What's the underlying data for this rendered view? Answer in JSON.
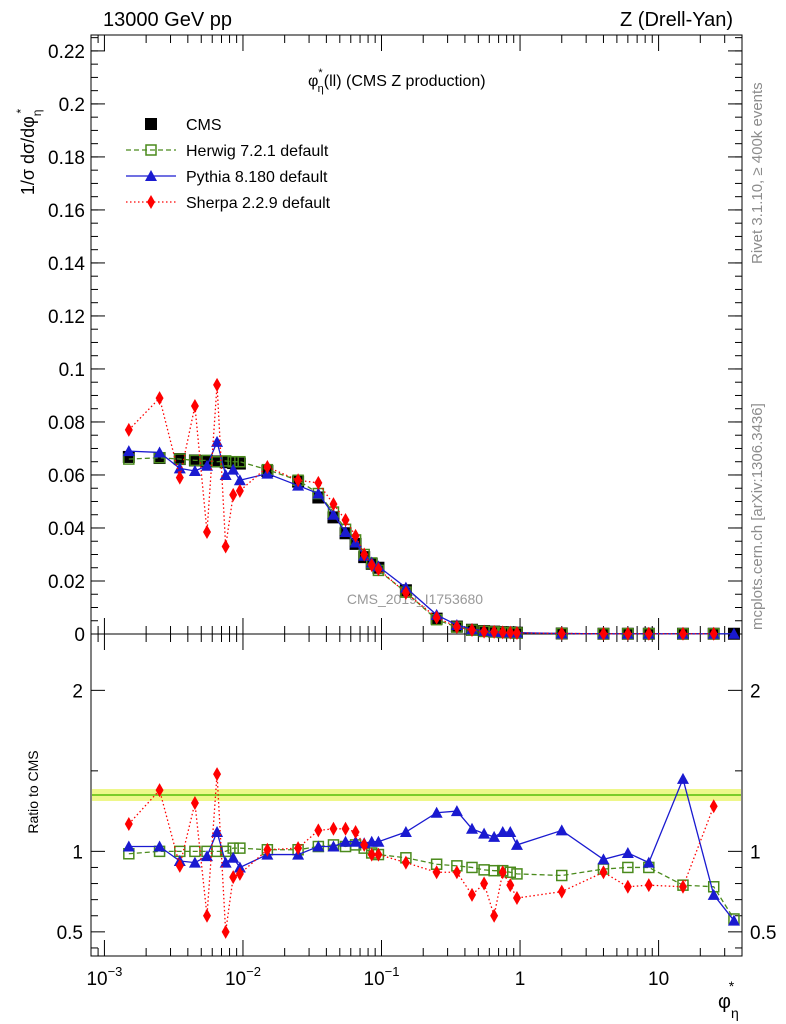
{
  "header": {
    "left": "13000 GeV pp",
    "right": "Z (Drell-Yan)"
  },
  "side_text": {
    "rivet": "Rivet 3.1.10, ≥ 400k events",
    "site": "mcplots.cern.ch [arXiv:1306.3436]"
  },
  "watermark": "CMS_2019_I1753680",
  "chart_data": [
    {
      "type": "scatter",
      "panel": "main",
      "title": "φ*η(ll) (CMS Z production)",
      "title_parts": {
        "phi": "φ",
        "star": "*",
        "eta": "η",
        "rest": "(ll) (CMS Z production)"
      },
      "ylabel": "1/σ dσ/dφ*η",
      "ylabel_parts": {
        "main": "1/σ dσ/dφ",
        "star": "*",
        "eta": "η"
      },
      "x_scale": "log",
      "xlim": [
        0.0008,
        40
      ],
      "ylim": [
        0,
        0.226
      ],
      "yticks": [
        {
          "v": 0,
          "label": "0"
        },
        {
          "v": 0.02,
          "label": "0.02"
        },
        {
          "v": 0.04,
          "label": "0.04"
        },
        {
          "v": 0.06,
          "label": "0.06"
        },
        {
          "v": 0.08,
          "label": "0.08"
        },
        {
          "v": 0.1,
          "label": "0.1"
        },
        {
          "v": 0.12,
          "label": "0.12"
        },
        {
          "v": 0.14,
          "label": "0.14"
        },
        {
          "v": 0.16,
          "label": "0.16"
        },
        {
          "v": 0.18,
          "label": "0.18"
        },
        {
          "v": 0.2,
          "label": "0.2"
        },
        {
          "v": 0.22,
          "label": "0.22"
        }
      ],
      "legend_position": "top-left",
      "series": [
        {
          "name": "CMS",
          "color": "#000000",
          "marker": "square-filled",
          "line": "none",
          "x": [
            0.0015,
            0.0025,
            0.0035,
            0.0045,
            0.0055,
            0.0065,
            0.0075,
            0.0085,
            0.0095,
            0.015,
            0.025,
            0.035,
            0.045,
            0.055,
            0.065,
            0.075,
            0.085,
            0.095,
            0.15,
            0.25,
            0.35,
            0.45,
            0.55,
            0.65,
            0.75,
            0.85,
            0.95,
            2,
            4,
            6,
            8.5,
            15,
            25,
            35
          ],
          "y": [
            0.0668,
            0.0664,
            0.066,
            0.0655,
            0.0653,
            0.0651,
            0.0648,
            0.0645,
            0.0643,
            0.0615,
            0.0575,
            0.0515,
            0.044,
            0.038,
            0.034,
            0.029,
            0.0265,
            0.025,
            0.0165,
            0.0058,
            0.0028,
            0.0016,
            0.0011,
            0.0009,
            0.0007,
            0.0006,
            0.0005,
            0.0002,
            0.0001,
            0.0001,
            0.0001,
            0.0001,
            0.0001,
            0.0001
          ]
        },
        {
          "name": "Herwig 7.2.1 default",
          "color": "#4a8a1c",
          "marker": "square-open",
          "line": "dashed",
          "x": [
            0.0015,
            0.0025,
            0.0035,
            0.0045,
            0.0055,
            0.0065,
            0.0075,
            0.0085,
            0.0095,
            0.015,
            0.025,
            0.035,
            0.045,
            0.055,
            0.065,
            0.075,
            0.085,
            0.095,
            0.15,
            0.25,
            0.35,
            0.45,
            0.55,
            0.65,
            0.75,
            0.85,
            0.95,
            2,
            4,
            6,
            8.5,
            15,
            25
          ],
          "y": [
            0.066,
            0.0665,
            0.066,
            0.0655,
            0.0655,
            0.065,
            0.0653,
            0.065,
            0.065,
            0.062,
            0.058,
            0.053,
            0.046,
            0.0395,
            0.0355,
            0.03,
            0.0268,
            0.024,
            0.0158,
            0.0054,
            0.0026,
            0.0015,
            0.001,
            0.0008,
            0.0006,
            0.0005,
            0.0004,
            0.0002,
            0.0001,
            0.0001,
            0.0001,
            0.0001,
            0.0001
          ]
        },
        {
          "name": "Pythia 8.180 default",
          "color": "#1a1ad0",
          "marker": "triangle-filled",
          "line": "solid",
          "x": [
            0.0015,
            0.0025,
            0.0035,
            0.0045,
            0.0055,
            0.0065,
            0.0075,
            0.0085,
            0.0095,
            0.015,
            0.025,
            0.035,
            0.045,
            0.055,
            0.065,
            0.075,
            0.085,
            0.095,
            0.15,
            0.25,
            0.35,
            0.45,
            0.55,
            0.65,
            0.75,
            0.85,
            0.95,
            2,
            4,
            6,
            8.5,
            15,
            25,
            35
          ],
          "y": [
            0.069,
            0.0685,
            0.0625,
            0.0615,
            0.0635,
            0.0725,
            0.06,
            0.062,
            0.058,
            0.0605,
            0.056,
            0.053,
            0.045,
            0.0385,
            0.0345,
            0.0295,
            0.027,
            0.0255,
            0.0175,
            0.0072,
            0.0034,
            0.0018,
            0.0012,
            0.0009,
            0.0007,
            0.0006,
            0.0005,
            0.0002,
            0.0001,
            0.0001,
            0.0001,
            0.0001,
            0.0001,
            0.0001
          ]
        },
        {
          "name": "Sherpa 2.2.9 default",
          "color": "#ff0000",
          "marker": "diamond-filled",
          "line": "dotted",
          "x": [
            0.0015,
            0.0025,
            0.0035,
            0.0045,
            0.0055,
            0.0065,
            0.0075,
            0.0085,
            0.0095,
            0.015,
            0.025,
            0.035,
            0.045,
            0.055,
            0.065,
            0.075,
            0.085,
            0.095,
            0.15,
            0.25,
            0.35,
            0.45,
            0.55,
            0.65,
            0.75,
            0.85,
            0.95,
            2,
            4,
            6,
            8.5,
            15,
            25
          ],
          "y": [
            0.077,
            0.089,
            0.059,
            0.086,
            0.0385,
            0.094,
            0.033,
            0.0525,
            0.054,
            0.063,
            0.058,
            0.057,
            0.049,
            0.043,
            0.037,
            0.03,
            0.026,
            0.0245,
            0.0155,
            0.0062,
            0.0027,
            0.0015,
            0.0009,
            0.0008,
            0.0006,
            0.0005,
            0.0004,
            0.0002,
            0.0001,
            0.0001,
            0.0001,
            0.0001,
            0.0001
          ]
        }
      ]
    },
    {
      "type": "scatter",
      "panel": "ratio",
      "ylabel": "Ratio to CMS",
      "xlabel_parts": {
        "phi": "φ",
        "star": "*",
        "eta": "η"
      },
      "x_scale": "log",
      "xlim": [
        0.0008,
        40
      ],
      "ylim": [
        0.35,
        2.35
      ],
      "yticks": [
        {
          "v": 0.5,
          "label": "0.5"
        },
        {
          "v": 1,
          "label": "1"
        },
        {
          "v": 2,
          "label": "2"
        }
      ],
      "xticks": [
        {
          "v": 0.001,
          "base": "10",
          "exp": "−3"
        },
        {
          "v": 0.01,
          "base": "10",
          "exp": "−2"
        },
        {
          "v": 0.1,
          "base": "10",
          "exp": "−1"
        },
        {
          "v": 1,
          "base": "1",
          "exp": ""
        },
        {
          "v": 10,
          "base": "10",
          "exp": ""
        }
      ],
      "series": [
        {
          "name": "Herwig 7.2.1 default",
          "color": "#4a8a1c",
          "marker": "square-open",
          "line": "dashed",
          "x": [
            0.0015,
            0.0025,
            0.0035,
            0.0045,
            0.0055,
            0.0065,
            0.0075,
            0.0085,
            0.0095,
            0.015,
            0.025,
            0.035,
            0.045,
            0.055,
            0.065,
            0.075,
            0.085,
            0.095,
            0.15,
            0.25,
            0.35,
            0.45,
            0.55,
            0.65,
            0.75,
            0.85,
            0.95,
            2,
            4,
            6,
            8.5,
            15,
            25,
            35
          ],
          "y": [
            0.985,
            1.0,
            1.0,
            1.0,
            1.0,
            1.0,
            1.0,
            1.02,
            1.02,
            1.01,
            1.01,
            1.03,
            1.04,
            1.03,
            1.04,
            1.02,
            0.99,
            0.98,
            0.96,
            0.92,
            0.91,
            0.9,
            0.885,
            0.88,
            0.88,
            0.87,
            0.86,
            0.85,
            0.89,
            0.9,
            0.9,
            0.79,
            0.78,
            0.58
          ]
        },
        {
          "name": "Pythia 8.180 default",
          "color": "#1a1ad0",
          "marker": "triangle-filled",
          "line": "solid",
          "x": [
            0.0015,
            0.0025,
            0.0035,
            0.0045,
            0.0055,
            0.0065,
            0.0075,
            0.0085,
            0.0095,
            0.015,
            0.025,
            0.035,
            0.045,
            0.055,
            0.065,
            0.075,
            0.085,
            0.095,
            0.15,
            0.25,
            0.35,
            0.45,
            0.55,
            0.65,
            0.75,
            0.85,
            0.95,
            2,
            4,
            6,
            8.5,
            15,
            25,
            35
          ],
          "y": [
            1.03,
            1.03,
            0.94,
            0.93,
            0.97,
            1.12,
            0.93,
            0.96,
            0.9,
            0.98,
            0.98,
            1.03,
            1.03,
            1.06,
            1.06,
            1.05,
            1.06,
            1.06,
            1.12,
            1.24,
            1.25,
            1.14,
            1.11,
            1.09,
            1.12,
            1.12,
            1.04,
            1.13,
            0.95,
            0.99,
            0.93,
            1.45,
            0.73,
            0.57
          ]
        },
        {
          "name": "Sherpa 2.2.9 default",
          "color": "#ff0000",
          "marker": "diamond-filled",
          "line": "dotted",
          "x": [
            0.0015,
            0.0025,
            0.0035,
            0.0045,
            0.0055,
            0.0065,
            0.0075,
            0.0085,
            0.0095,
            0.015,
            0.025,
            0.035,
            0.045,
            0.055,
            0.065,
            0.075,
            0.085,
            0.095,
            0.15,
            0.25,
            0.35,
            0.45,
            0.55,
            0.65,
            0.75,
            0.85,
            0.95,
            2,
            4,
            6,
            8.5,
            15,
            25
          ],
          "y": [
            1.17,
            1.38,
            0.91,
            1.3,
            0.6,
            1.48,
            0.5,
            0.84,
            0.86,
            1.01,
            1.02,
            1.13,
            1.14,
            1.14,
            1.12,
            1.04,
            0.98,
            0.98,
            0.93,
            0.87,
            0.87,
            0.73,
            0.8,
            0.6,
            0.87,
            0.79,
            0.71,
            0.75,
            0.87,
            0.78,
            0.79,
            0.78,
            1.28
          ]
        }
      ]
    }
  ]
}
